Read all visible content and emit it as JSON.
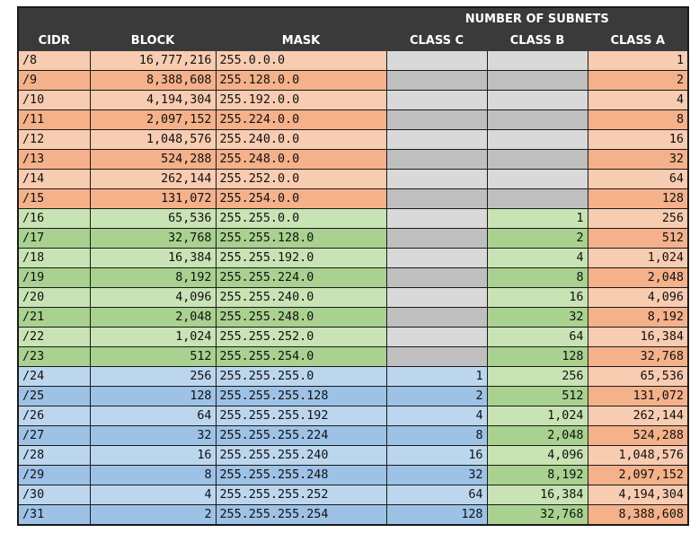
{
  "header": {
    "group_label": "NUMBER OF SUBNETS",
    "cols": [
      "CIDR",
      "BLOCK",
      "MASK",
      "CLASS C",
      "CLASS B",
      "CLASS A"
    ]
  },
  "colors": {
    "header_bg": "#3a3a3a",
    "orange_light": "#f8ccb0",
    "orange_dark": "#f4b18a",
    "green_light": "#c8e3b4",
    "green_dark": "#a9d18f",
    "blue_light": "#bcd6ee",
    "blue_dark": "#9dc2e6",
    "gray_light": "#d9d9d9",
    "gray_dark": "#bfbfbf"
  },
  "rows": [
    {
      "cidr": "/8",
      "block": "16,777,216",
      "mask": "255.0.0.0",
      "class_c": "",
      "class_b": "",
      "class_a": "1"
    },
    {
      "cidr": "/9",
      "block": "8,388,608",
      "mask": "255.128.0.0",
      "class_c": "",
      "class_b": "",
      "class_a": "2"
    },
    {
      "cidr": "/10",
      "block": "4,194,304",
      "mask": "255.192.0.0",
      "class_c": "",
      "class_b": "",
      "class_a": "4"
    },
    {
      "cidr": "/11",
      "block": "2,097,152",
      "mask": "255.224.0.0",
      "class_c": "",
      "class_b": "",
      "class_a": "8"
    },
    {
      "cidr": "/12",
      "block": "1,048,576",
      "mask": "255.240.0.0",
      "class_c": "",
      "class_b": "",
      "class_a": "16"
    },
    {
      "cidr": "/13",
      "block": "524,288",
      "mask": "255.248.0.0",
      "class_c": "",
      "class_b": "",
      "class_a": "32"
    },
    {
      "cidr": "/14",
      "block": "262,144",
      "mask": "255.252.0.0",
      "class_c": "",
      "class_b": "",
      "class_a": "64"
    },
    {
      "cidr": "/15",
      "block": "131,072",
      "mask": "255.254.0.0",
      "class_c": "",
      "class_b": "",
      "class_a": "128"
    },
    {
      "cidr": "/16",
      "block": "65,536",
      "mask": "255.255.0.0",
      "class_c": "",
      "class_b": "1",
      "class_a": "256"
    },
    {
      "cidr": "/17",
      "block": "32,768",
      "mask": "255.255.128.0",
      "class_c": "",
      "class_b": "2",
      "class_a": "512"
    },
    {
      "cidr": "/18",
      "block": "16,384",
      "mask": "255.255.192.0",
      "class_c": "",
      "class_b": "4",
      "class_a": "1,024"
    },
    {
      "cidr": "/19",
      "block": "8,192",
      "mask": "255.255.224.0",
      "class_c": "",
      "class_b": "8",
      "class_a": "2,048"
    },
    {
      "cidr": "/20",
      "block": "4,096",
      "mask": "255.255.240.0",
      "class_c": "",
      "class_b": "16",
      "class_a": "4,096"
    },
    {
      "cidr": "/21",
      "block": "2,048",
      "mask": "255.255.248.0",
      "class_c": "",
      "class_b": "32",
      "class_a": "8,192"
    },
    {
      "cidr": "/22",
      "block": "1,024",
      "mask": "255.255.252.0",
      "class_c": "",
      "class_b": "64",
      "class_a": "16,384"
    },
    {
      "cidr": "/23",
      "block": "512",
      "mask": "255.255.254.0",
      "class_c": "",
      "class_b": "128",
      "class_a": "32,768"
    },
    {
      "cidr": "/24",
      "block": "256",
      "mask": "255.255.255.0",
      "class_c": "1",
      "class_b": "256",
      "class_a": "65,536"
    },
    {
      "cidr": "/25",
      "block": "128",
      "mask": "255.255.255.128",
      "class_c": "2",
      "class_b": "512",
      "class_a": "131,072"
    },
    {
      "cidr": "/26",
      "block": "64",
      "mask": "255.255.255.192",
      "class_c": "4",
      "class_b": "1,024",
      "class_a": "262,144"
    },
    {
      "cidr": "/27",
      "block": "32",
      "mask": "255.255.255.224",
      "class_c": "8",
      "class_b": "2,048",
      "class_a": "524,288"
    },
    {
      "cidr": "/28",
      "block": "16",
      "mask": "255.255.255.240",
      "class_c": "16",
      "class_b": "4,096",
      "class_a": "1,048,576"
    },
    {
      "cidr": "/29",
      "block": "8",
      "mask": "255.255.255.248",
      "class_c": "32",
      "class_b": "8,192",
      "class_a": "2,097,152"
    },
    {
      "cidr": "/30",
      "block": "4",
      "mask": "255.255.255.252",
      "class_c": "64",
      "class_b": "16,384",
      "class_a": "4,194,304"
    },
    {
      "cidr": "/31",
      "block": "2",
      "mask": "255.255.255.254",
      "class_c": "128",
      "class_b": "32,768",
      "class_a": "8,388,608"
    }
  ]
}
